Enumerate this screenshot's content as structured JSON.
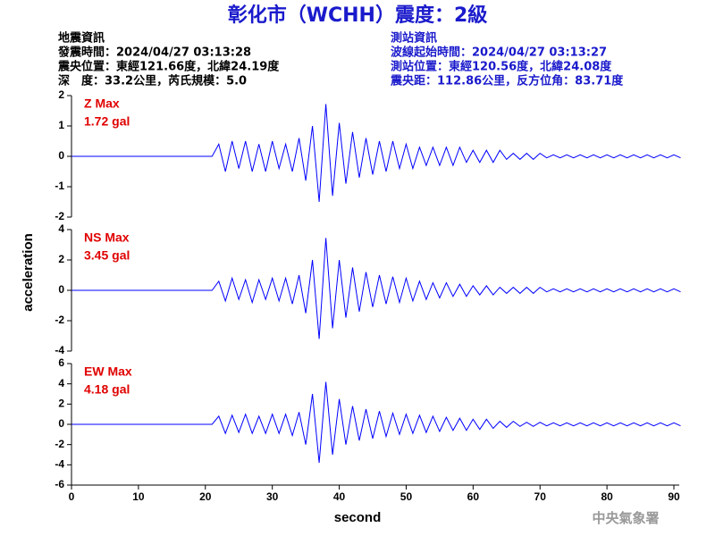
{
  "header": {
    "title": "彰化市（WCHH）震度：2級",
    "left": [
      "地震資訊",
      "發震時間：2024/04/27 03:13:28",
      "震央位置：東經121.66度，北緯24.19度",
      "深　度：33.2公里，芮氏規模：5.0"
    ],
    "right": [
      "測站資訊",
      "波線起始時間：2024/04/27 03:13:27",
      "測站位置：東經120.56度，北緯24.08度",
      "震央距：112.86公里，反方位角：83.71度"
    ]
  },
  "footer": "中央氣象署",
  "chart_data": [
    {
      "type": "line",
      "annotation": [
        "Z Max",
        "1.72 gal"
      ],
      "color": "#0000ff",
      "xlim": [
        0,
        90.8
      ],
      "ylim": [
        -2,
        2
      ],
      "yticks": [
        -2,
        -1,
        0,
        1,
        2
      ],
      "x": [
        0,
        21,
        22,
        23,
        24,
        25,
        26,
        27,
        28,
        29,
        30,
        31,
        32,
        33,
        34,
        35,
        36,
        37,
        38,
        39,
        40,
        41,
        42,
        43,
        44,
        45,
        46,
        47,
        48,
        49,
        50,
        51,
        52,
        53,
        54,
        55,
        56,
        57,
        58,
        59,
        60,
        61,
        62,
        63,
        64,
        65,
        66,
        67,
        68,
        69,
        70,
        71,
        72,
        73,
        74,
        75,
        76,
        77,
        78,
        79,
        80,
        81,
        82,
        83,
        84,
        85,
        86,
        87,
        88,
        89,
        90,
        91
      ],
      "values": [
        0,
        0,
        0.4,
        -0.5,
        0.5,
        -0.4,
        0.5,
        -0.5,
        0.4,
        -0.5,
        0.5,
        -0.4,
        0.4,
        -0.5,
        0.6,
        -0.8,
        1.0,
        -1.5,
        1.72,
        -1.3,
        1.1,
        -0.9,
        0.8,
        -0.7,
        0.6,
        -0.6,
        0.5,
        -0.5,
        0.5,
        -0.4,
        0.4,
        -0.4,
        0.3,
        -0.3,
        0.3,
        -0.3,
        0.3,
        -0.3,
        0.3,
        -0.2,
        0.2,
        -0.2,
        0.2,
        -0.2,
        0.2,
        -0.1,
        0.1,
        -0.1,
        0.1,
        -0.1,
        0.1,
        -0.05,
        0.05,
        -0.05,
        0.05,
        -0.05,
        0.05,
        -0.05,
        0.05,
        -0.05,
        0.05,
        -0.05,
        0.05,
        -0.05,
        0.05,
        -0.05,
        0.05,
        -0.05,
        0.05,
        -0.05,
        0.05,
        -0.05
      ]
    },
    {
      "type": "line",
      "annotation": [
        "NS Max",
        "3.45 gal"
      ],
      "color": "#0000ff",
      "y_label": "acceleration",
      "xlim": [
        0,
        90.8
      ],
      "ylim": [
        -4,
        4
      ],
      "yticks": [
        -4,
        -2,
        0,
        2,
        4
      ],
      "x": [
        0,
        21,
        22,
        23,
        24,
        25,
        26,
        27,
        28,
        29,
        30,
        31,
        32,
        33,
        34,
        35,
        36,
        37,
        38,
        39,
        40,
        41,
        42,
        43,
        44,
        45,
        46,
        47,
        48,
        49,
        50,
        51,
        52,
        53,
        54,
        55,
        56,
        57,
        58,
        59,
        60,
        61,
        62,
        63,
        64,
        65,
        66,
        67,
        68,
        69,
        70,
        71,
        72,
        73,
        74,
        75,
        76,
        77,
        78,
        79,
        80,
        81,
        82,
        83,
        84,
        85,
        86,
        87,
        88,
        89,
        90,
        91
      ],
      "values": [
        0,
        0,
        0.6,
        -0.7,
        0.8,
        -0.6,
        0.7,
        -0.8,
        0.7,
        -0.6,
        0.8,
        -0.7,
        0.8,
        -0.9,
        1.0,
        -1.5,
        2.0,
        -3.2,
        3.45,
        -2.5,
        2.0,
        -1.8,
        1.5,
        -1.4,
        1.2,
        -1.1,
        1.0,
        -0.9,
        0.9,
        -0.8,
        0.8,
        -0.7,
        0.6,
        -0.6,
        0.5,
        -0.5,
        0.5,
        -0.4,
        0.4,
        -0.4,
        0.3,
        -0.3,
        0.3,
        -0.3,
        0.2,
        -0.2,
        0.2,
        -0.2,
        0.2,
        -0.2,
        0.2,
        -0.1,
        0.1,
        -0.1,
        0.1,
        -0.1,
        0.1,
        -0.1,
        0.1,
        -0.1,
        0.1,
        -0.1,
        0.1,
        -0.1,
        0.1,
        -0.1,
        0.1,
        -0.1,
        0.1,
        -0.1,
        0.1,
        -0.1
      ]
    },
    {
      "type": "line",
      "annotation": [
        "EW Max",
        "4.18 gal"
      ],
      "color": "#0000ff",
      "x_label": "second",
      "xlim": [
        0,
        90.8
      ],
      "xticks": [
        0,
        10,
        20,
        30,
        40,
        50,
        60,
        70,
        80,
        90
      ],
      "ylim": [
        -6,
        6
      ],
      "yticks": [
        -6,
        -4,
        -2,
        0,
        2,
        4,
        6
      ],
      "x": [
        0,
        21,
        22,
        23,
        24,
        25,
        26,
        27,
        28,
        29,
        30,
        31,
        32,
        33,
        34,
        35,
        36,
        37,
        38,
        39,
        40,
        41,
        42,
        43,
        44,
        45,
        46,
        47,
        48,
        49,
        50,
        51,
        52,
        53,
        54,
        55,
        56,
        57,
        58,
        59,
        60,
        61,
        62,
        63,
        64,
        65,
        66,
        67,
        68,
        69,
        70,
        71,
        72,
        73,
        74,
        75,
        76,
        77,
        78,
        79,
        80,
        81,
        82,
        83,
        84,
        85,
        86,
        87,
        88,
        89,
        90,
        91
      ],
      "values": [
        0,
        0,
        0.8,
        -0.9,
        0.9,
        -0.8,
        1.0,
        -0.9,
        0.8,
        -0.9,
        1.0,
        -0.9,
        1.0,
        -1.1,
        1.2,
        -2.0,
        3.0,
        -3.8,
        4.18,
        -3.0,
        2.5,
        -2.0,
        1.8,
        -1.6,
        1.5,
        -1.4,
        1.3,
        -1.2,
        1.1,
        -1.0,
        1.0,
        -0.9,
        0.9,
        -0.8,
        0.8,
        -0.7,
        0.7,
        -0.6,
        0.6,
        -0.6,
        0.5,
        -0.5,
        0.5,
        -0.4,
        0.3,
        -0.3,
        0.3,
        -0.2,
        0.2,
        -0.2,
        0.2,
        -0.15,
        0.15,
        -0.15,
        0.15,
        -0.15,
        0.15,
        -0.15,
        0.15,
        -0.15,
        0.15,
        -0.15,
        0.15,
        -0.15,
        0.15,
        -0.15,
        0.15,
        -0.15,
        0.15,
        -0.15,
        0.15,
        -0.15
      ]
    }
  ]
}
